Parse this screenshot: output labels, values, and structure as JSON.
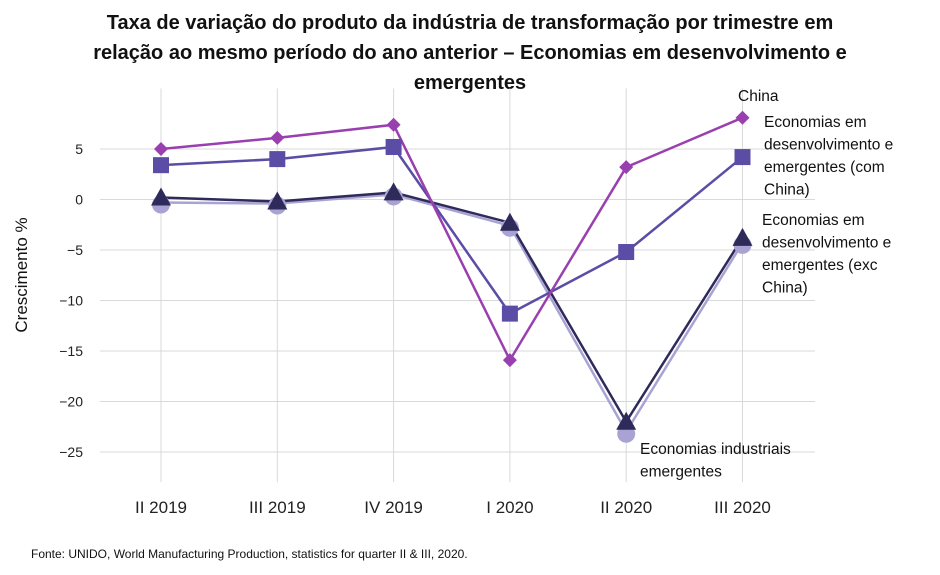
{
  "title": {
    "line1": "Taxa de variação do produto da indústria de transformação por trimestre em",
    "line2": "relação ao mesmo período do ano anterior – Economias em desenvolvimento e",
    "line3": "emergentes"
  },
  "source": "Fonte: UNIDO, World Manufacturing Production, statistics for quarter II & III, 2020.",
  "chart_data": {
    "type": "line",
    "ylabel": "Crescimento %",
    "xlabel": "",
    "categories": [
      "II 2019",
      "III 2019",
      "IV 2019",
      "I 2020",
      "II 2020",
      "III 2020"
    ],
    "y_ticks": [
      "5",
      "0",
      "−5",
      "−10",
      "−15",
      "−20",
      "−25"
    ],
    "y_tick_values": [
      5,
      0,
      -5,
      -10,
      -15,
      -20,
      -25
    ],
    "ylim": [
      -28,
      11
    ],
    "grid": true,
    "series": [
      {
        "name": "Economias industriais emergentes",
        "label_lines": [
          "Economias industriais",
          "emergentes"
        ],
        "values": [
          -0.3,
          -0.4,
          0.5,
          -2.6,
          -23.0,
          -4.3
        ],
        "color": "#a9a3d4",
        "marker": "circle"
      },
      {
        "name": "Economias em desenvolvimento e emergentes (exc China)",
        "label_lines": [
          "Economias em",
          "desenvolvimento e",
          "emergentes (exc",
          "China)"
        ],
        "values": [
          0.2,
          -0.2,
          0.7,
          -2.3,
          -22.0,
          -3.8
        ],
        "color": "#2e2a5a",
        "marker": "triangle"
      },
      {
        "name": "Economias em desenvolvimento e emergentes (com China)",
        "label_lines": [
          "Economias em",
          "desenvolvimento e",
          "emergentes (com",
          "China)"
        ],
        "values": [
          3.4,
          4.0,
          5.2,
          -11.3,
          -5.2,
          4.2
        ],
        "color": "#5b4da6",
        "marker": "square"
      },
      {
        "name": "China",
        "label_lines": [
          "China"
        ],
        "values": [
          5.0,
          6.1,
          7.4,
          -15.9,
          3.2,
          8.1
        ],
        "color": "#9a3fb0",
        "marker": "diamond"
      }
    ]
  }
}
